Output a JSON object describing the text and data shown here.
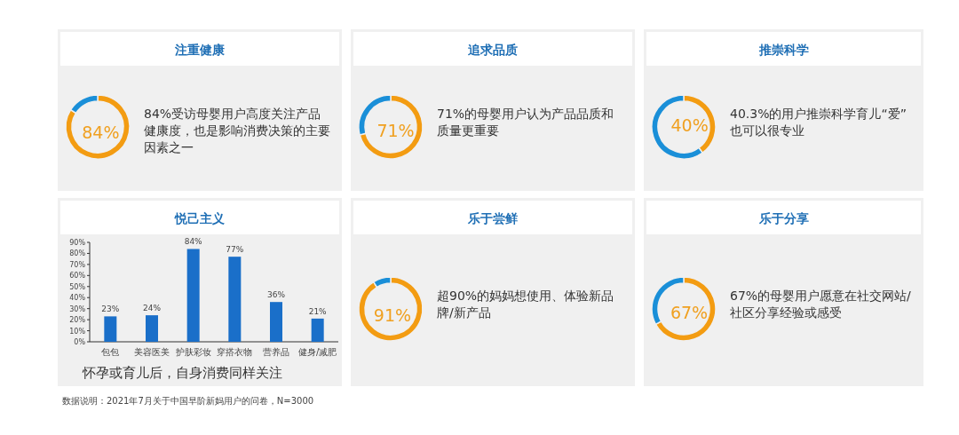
{
  "chart_data": [
    {
      "type": "donut",
      "title": "注重健康",
      "categories": [
        null,
        null
      ],
      "values": [
        84,
        16
      ],
      "colors": [
        "#f39c12",
        "#1a8fd8"
      ],
      "value_labels": [
        "84%",
        null
      ],
      "annotations": [
        "84%受访母婴用户高度关注产品健康度，也是影响消费决策的主要因素之一"
      ]
    },
    {
      "type": "donut",
      "title": "追求品质",
      "categories": [
        null,
        null
      ],
      "values": [
        71,
        29
      ],
      "colors": [
        "#f39c12",
        "#1a8fd8"
      ],
      "value_labels": [
        "71%",
        null
      ],
      "annotations": [
        "71%的母婴用户认为产品品质和质量更重要"
      ]
    },
    {
      "type": "donut",
      "title": "推崇科学",
      "categories": [
        null,
        null
      ],
      "values": [
        40,
        60
      ],
      "colors": [
        "#f39c12",
        "#1a8fd8"
      ],
      "value_labels": [
        "40%",
        null
      ],
      "annotations": [
        "40.3%的用户推崇科学育儿“爱”也可以很专业"
      ]
    },
    {
      "type": "bar",
      "title": "悦己主义",
      "categories": [
        "包包",
        "美容医美",
        "护肤彩妆",
        "穿搭衣物",
        "营养品",
        "健身/减肥"
      ],
      "values": [
        23,
        24,
        84,
        77,
        36,
        21
      ],
      "color": "#1a6fc9",
      "value_labels": [
        "23%",
        "24%",
        "84%",
        "77%",
        "36%",
        "21%"
      ],
      "ylim": [
        0,
        90
      ],
      "yticks": [
        {
          "value": 0,
          "label": "0%"
        },
        {
          "value": 10,
          "label": "10%"
        },
        {
          "value": 20,
          "label": "20%"
        },
        {
          "value": 30,
          "label": "30%"
        },
        {
          "value": 40,
          "label": "40%"
        },
        {
          "value": 50,
          "label": "50%"
        },
        {
          "value": 60,
          "label": "60%"
        },
        {
          "value": 70,
          "label": "70%"
        },
        {
          "value": 80,
          "label": "80%"
        },
        {
          "value": 90,
          "label": "90%"
        }
      ],
      "annotations": [
        "怀孕或育儿后，自身消费同样关注"
      ]
    },
    {
      "type": "donut",
      "title": "乐于尝鲜",
      "categories": [
        null,
        null
      ],
      "values": [
        91,
        9
      ],
      "colors": [
        "#f39c12",
        "#1a8fd8"
      ],
      "value_labels": [
        "91%",
        null
      ],
      "annotations": [
        "超90%的妈妈想使用、体验新品牌/新产品"
      ]
    },
    {
      "type": "donut",
      "title": "乐于分享",
      "categories": [
        null,
        null
      ],
      "values": [
        67,
        33
      ],
      "colors": [
        "#f39c12",
        "#1a8fd8"
      ],
      "value_labels": [
        "67%",
        null
      ],
      "annotations": [
        "67%的母婴用户愿意在社交网站/社区分享经验或感受",
        "数据说明：2021年7月关于中国早阶新妈用户的问卷，N=3000"
      ]
    }
  ]
}
